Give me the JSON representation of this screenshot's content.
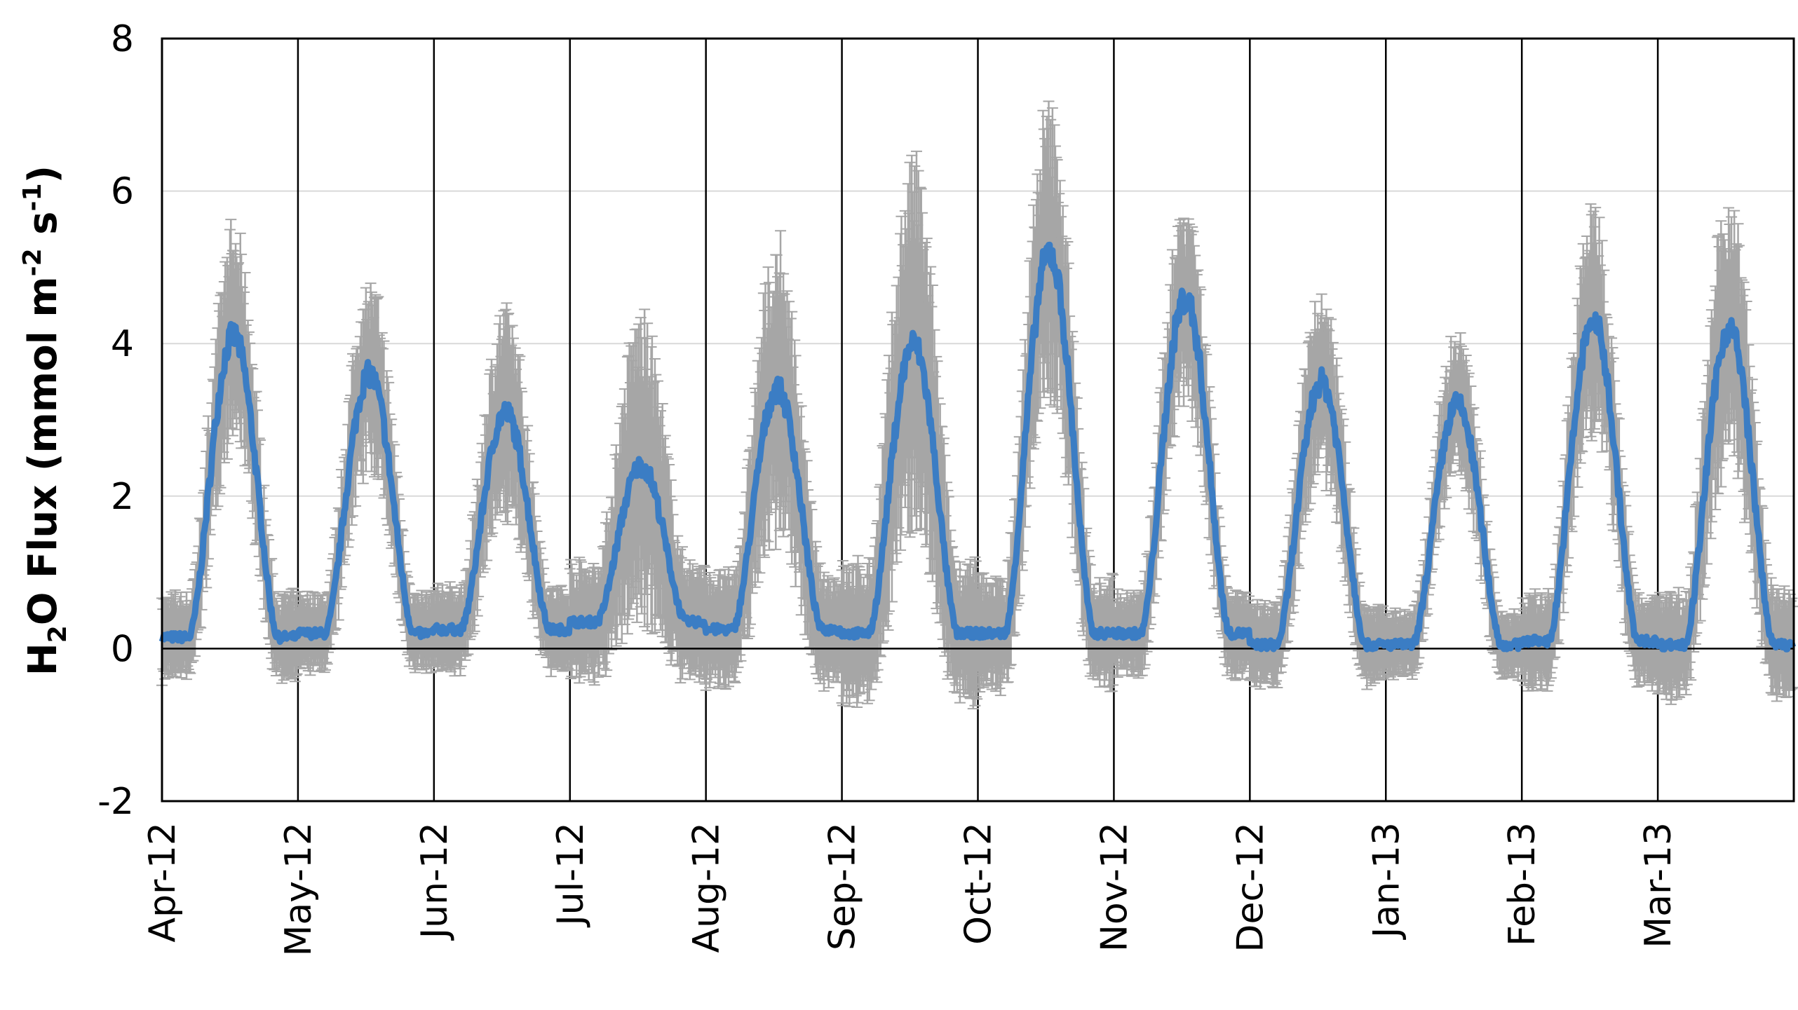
{
  "chart_data": {
    "type": "line",
    "title": "",
    "xlabel": "",
    "ylabel": {
      "base": "H",
      "sub": "2",
      "mid": "O Flux (mmol m",
      "sup1": "-2",
      "mid2": " s",
      "sup2": "-1",
      "end": ")"
    },
    "ylim": [
      -2,
      8
    ],
    "yticks": [
      "-2",
      "0",
      "2",
      "4",
      "6",
      "8"
    ],
    "yticks_values": [
      -2,
      0,
      2,
      4,
      6,
      8
    ],
    "x_range_months": [
      0,
      12
    ],
    "x_tick_labels": [
      "Apr-12",
      "May-12",
      "Jun-12",
      "Jul-12",
      "Aug-12",
      "Sep-12",
      "Oct-12",
      "Nov-12",
      "Dec-12",
      "Jan-13",
      "Feb-13",
      "Mar-13"
    ],
    "horizontal_grid": true,
    "vertical_month_lines": true,
    "colors": {
      "line": "#3b7dc4",
      "error_bars": "#a6a6a6",
      "grid": "#d9d9d9",
      "axes": "#000000"
    },
    "diurnal_profiles": [
      {
        "month": "Apr-12",
        "base": 0.15,
        "peak": 4.1,
        "error": 0.9
      },
      {
        "month": "May-12",
        "base": 0.2,
        "peak": 3.6,
        "error": 0.8
      },
      {
        "month": "Jun-12",
        "base": 0.25,
        "peak": 3.1,
        "error": 0.9
      },
      {
        "month": "Jul-12",
        "base": 0.35,
        "peak": 2.4,
        "error": 1.4
      },
      {
        "month": "Aug-12",
        "base": 0.25,
        "peak": 3.4,
        "error": 1.3
      },
      {
        "month": "Sep-12",
        "base": 0.2,
        "peak": 4.0,
        "error": 1.7
      },
      {
        "month": "Oct-12",
        "base": 0.2,
        "peak": 5.2,
        "error": 1.3
      },
      {
        "month": "Nov-12",
        "base": 0.2,
        "peak": 4.6,
        "error": 0.9
      },
      {
        "month": "Dec-12",
        "base": 0.05,
        "peak": 3.5,
        "error": 0.8
      },
      {
        "month": "Jan-13",
        "base": 0.05,
        "peak": 3.2,
        "error": 0.6
      },
      {
        "month": "Feb-13",
        "base": 0.1,
        "peak": 4.3,
        "error": 1.0
      },
      {
        "month": "Mar-13",
        "base": 0.05,
        "peak": 4.2,
        "error": 1.2
      }
    ]
  }
}
